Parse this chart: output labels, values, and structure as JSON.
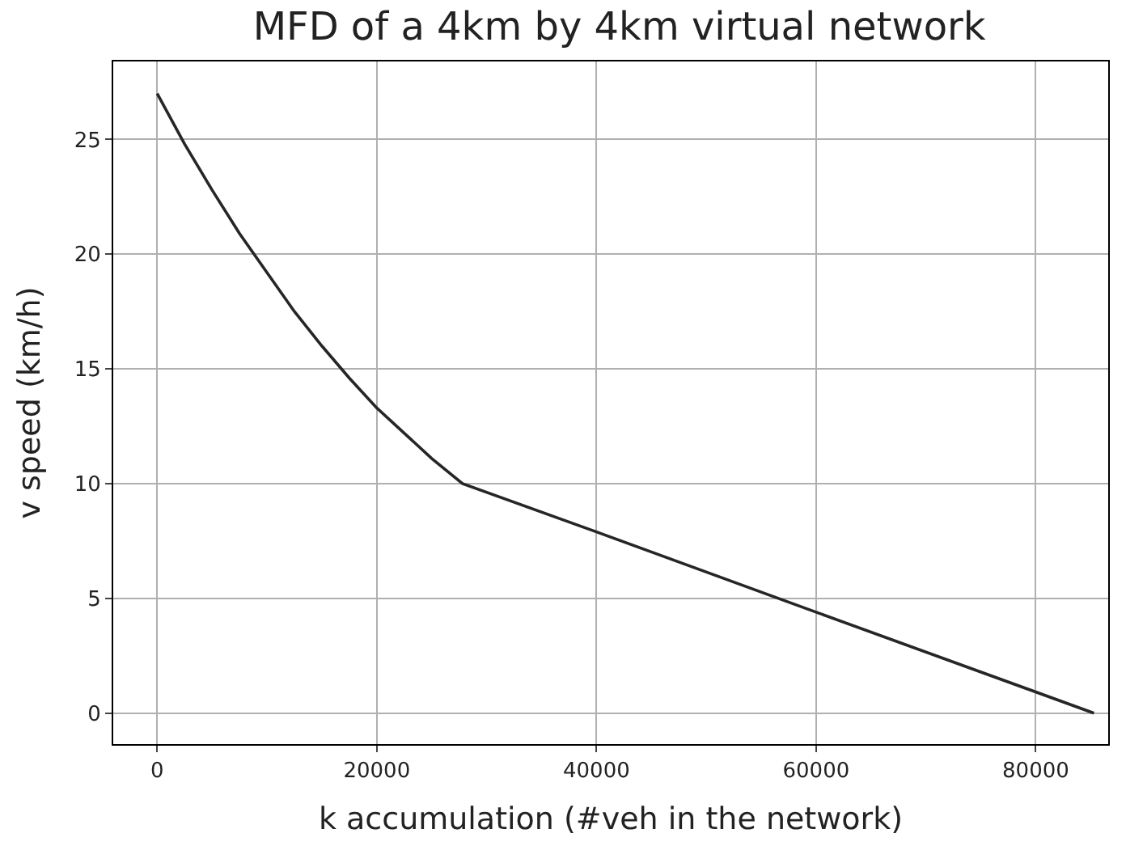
{
  "chart_data": {
    "type": "line",
    "title": "MFD of a 4km by 4km virtual network",
    "xlabel": "k accumulation (#veh in the network)",
    "ylabel": "v speed (km/h)",
    "x": [
      0,
      2500,
      5000,
      7500,
      10000,
      12500,
      15000,
      17500,
      20000,
      22500,
      25000,
      27800,
      40000,
      60000,
      85300
    ],
    "series": [
      {
        "color": "#262626",
        "values": [
          27,
          24.8,
          22.8,
          20.9,
          19.2,
          17.5,
          16.0,
          14.6,
          13.3,
          12.2,
          11.1,
          10.0,
          7.9,
          4.4,
          0
        ]
      }
    ],
    "xlim": [
      -4000,
      86600
    ],
    "ylim": [
      -1.35,
      28.4
    ],
    "xticks": [
      0,
      20000,
      40000,
      60000,
      80000
    ],
    "yticks": [
      0,
      5,
      10,
      15,
      20,
      25
    ],
    "grid": true,
    "legend": false,
    "marker": "none",
    "line_style": "solid"
  }
}
